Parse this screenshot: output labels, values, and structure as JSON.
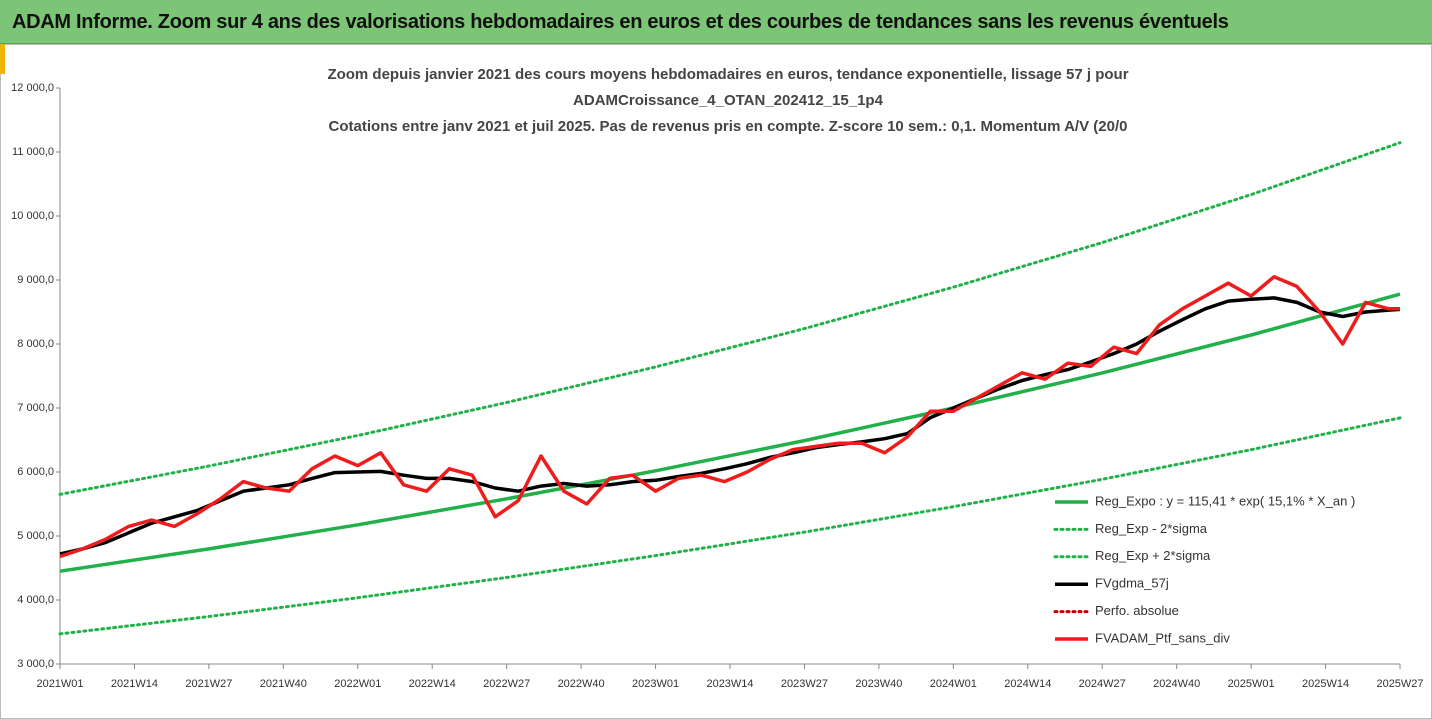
{
  "chart_data": {
    "type": "line",
    "title": "ADAM Informe. Zoom sur 4 ans des valorisations hebdomadaires en euros et des courbes de tendances sans les revenus éventuels",
    "subtitle": [
      "Zoom depuis janvier 2021 des cours moyens hebdomadaires  en euros, tendance exponentielle, lissage 57 j pour",
      "ADAMCroissance_4_OTAN_202412_15_1p4",
      "Cotations entre janv 2021 et juil 2025. Pas de revenus pris en compte. Z-score 10 sem.: 0,1. Momentum A/V (20/0"
    ],
    "xlim": [
      0,
      234
    ],
    "xticks": [
      {
        "value": 0,
        "label": "2021W01"
      },
      {
        "value": 13,
        "label": "2021W14"
      },
      {
        "value": 26,
        "label": "2021W27"
      },
      {
        "value": 39,
        "label": "2021W40"
      },
      {
        "value": 52,
        "label": "2022W01"
      },
      {
        "value": 65,
        "label": "2022W14"
      },
      {
        "value": 78,
        "label": "2022W27"
      },
      {
        "value": 91,
        "label": "2022W40"
      },
      {
        "value": 104,
        "label": "2023W01"
      },
      {
        "value": 117,
        "label": "2023W14"
      },
      {
        "value": 130,
        "label": "2023W27"
      },
      {
        "value": 143,
        "label": "2023W40"
      },
      {
        "value": 156,
        "label": "2024W01"
      },
      {
        "value": 169,
        "label": "2024W14"
      },
      {
        "value": 182,
        "label": "2024W27"
      },
      {
        "value": 195,
        "label": "2024W40"
      },
      {
        "value": 208,
        "label": "2025W01"
      },
      {
        "value": 221,
        "label": "2025W14"
      },
      {
        "value": 234,
        "label": "2025W27"
      }
    ],
    "ylim": [
      3000,
      12000
    ],
    "yticks": [
      {
        "value": 3000,
        "label": "3 000,0"
      },
      {
        "value": 4000,
        "label": "4 000,0"
      },
      {
        "value": 5000,
        "label": "5 000,0"
      },
      {
        "value": 6000,
        "label": "6 000,0"
      },
      {
        "value": 7000,
        "label": "7 000,0"
      },
      {
        "value": 8000,
        "label": "8 000,0"
      },
      {
        "value": 9000,
        "label": "9 000,0"
      },
      {
        "value": 10000,
        "label": "10 000,0"
      },
      {
        "value": 11000,
        "label": "11 000,0"
      },
      {
        "value": 12000,
        "label": "12 000,0"
      }
    ],
    "grid": false,
    "legend": "lower-right",
    "x": [
      0,
      4,
      8,
      12,
      16,
      20,
      24,
      28,
      32,
      36,
      40,
      44,
      48,
      52,
      56,
      60,
      64,
      68,
      72,
      76,
      80,
      84,
      88,
      92,
      96,
      100,
      104,
      108,
      112,
      116,
      120,
      124,
      128,
      132,
      136,
      140,
      144,
      148,
      152,
      156,
      160,
      164,
      168,
      172,
      176,
      180,
      184,
      188,
      192,
      196,
      200,
      204,
      208,
      212,
      216,
      220,
      224,
      228,
      232,
      234
    ],
    "series": [
      {
        "name": "Reg_Expo : y = 115,41 * exp( 15,1% *  X_an )",
        "color": "#22b04b",
        "dash": false,
        "width": 3.5,
        "x": [
          0,
          26,
          52,
          78,
          104,
          130,
          156,
          182,
          208,
          234
        ],
        "values": [
          4450,
          4799,
          5175,
          5581,
          6019,
          6491,
          7000,
          7549,
          8140,
          8779
        ]
      },
      {
        "name": "Reg_Exp - 2*sigma",
        "color": "#22b04b",
        "dash": true,
        "width": 3,
        "x": [
          0,
          26,
          52,
          78,
          104,
          130,
          156,
          182,
          208,
          234
        ],
        "values": [
          3470,
          3742,
          4036,
          4352,
          4693,
          5061,
          5458,
          5886,
          6348,
          6845
        ]
      },
      {
        "name": "Reg_Exp + 2*sigma",
        "color": "#22b04b",
        "dash": true,
        "width": 3,
        "x": [
          0,
          26,
          52,
          78,
          104,
          130,
          156,
          182,
          208,
          234
        ],
        "values": [
          5650,
          6093,
          6571,
          7086,
          7642,
          8241,
          8887,
          9584,
          10335,
          11146
        ]
      },
      {
        "name": "FVgdma_57j",
        "color": "#000000",
        "dash": false,
        "width": 3.5,
        "values": [
          4720,
          4800,
          4900,
          5050,
          5200,
          5300,
          5400,
          5550,
          5700,
          5750,
          5800,
          5900,
          5990,
          6000,
          6010,
          5950,
          5900,
          5900,
          5850,
          5750,
          5700,
          5780,
          5820,
          5780,
          5800,
          5850,
          5870,
          5930,
          5980,
          6050,
          6130,
          6230,
          6300,
          6380,
          6430,
          6470,
          6520,
          6600,
          6850,
          7000,
          7150,
          7300,
          7430,
          7520,
          7600,
          7720,
          7850,
          8000,
          8200,
          8380,
          8550,
          8670,
          8700,
          8720,
          8650,
          8500,
          8430,
          8500,
          8530,
          8540
        ]
      },
      {
        "name": "Perfo. absolue",
        "color": "#c00000",
        "dash": true,
        "width": 3,
        "x": [],
        "values": []
      },
      {
        "name": "FVADAM_Ptf_sans_div",
        "color": "#ee1c1c",
        "dash": false,
        "width": 3.5,
        "values": [
          4680,
          4800,
          4950,
          5150,
          5250,
          5150,
          5350,
          5580,
          5850,
          5750,
          5700,
          6050,
          6250,
          6100,
          6300,
          5800,
          5700,
          6050,
          5950,
          5300,
          5550,
          6250,
          5700,
          5500,
          5900,
          5950,
          5700,
          5900,
          5950,
          5850,
          6000,
          6200,
          6350,
          6400,
          6450,
          6450,
          6300,
          6550,
          6950,
          6950,
          7150,
          7350,
          7550,
          7450,
          7700,
          7650,
          7950,
          7850,
          8300,
          8550,
          8750,
          8950,
          8750,
          9050,
          8900,
          8500,
          8000,
          8650,
          8550,
          8550
        ]
      }
    ]
  }
}
